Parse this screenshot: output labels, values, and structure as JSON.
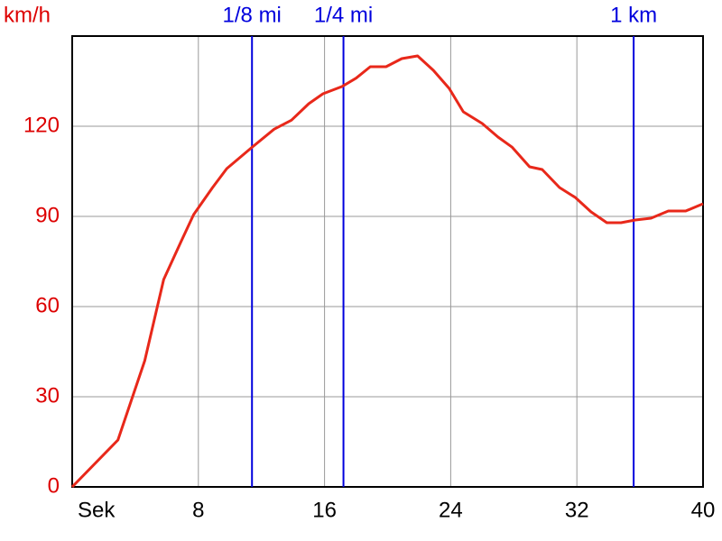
{
  "chart_data": {
    "type": "line",
    "y_label": "km/h",
    "x": [
      0,
      2.9,
      4.6,
      5.8,
      6.9,
      7.7,
      8.9,
      9.8,
      11.4,
      12.8,
      13.9,
      15,
      15.9,
      17.1,
      18,
      18.9,
      19.9,
      20.9,
      21.9,
      22.9,
      23.9,
      24.8,
      26,
      27,
      27.9,
      29,
      29.8,
      30.9,
      31.9,
      32.9,
      33.9,
      34.8,
      35.7,
      36.7,
      37.8,
      38.9,
      40
    ],
    "series": [
      {
        "color": "#e8281a",
        "values": [
          0,
          15.6,
          42,
          69,
          81.6,
          90.6,
          99.6,
          105.9,
          113,
          119,
          122,
          127.5,
          130.8,
          133.2,
          136,
          139.8,
          139.8,
          142.5,
          143.4,
          138.6,
          132.6,
          124.8,
          120.9,
          116.4,
          113,
          106.5,
          105.6,
          99.6,
          96.3,
          91.5,
          87.9,
          87.9,
          88.8,
          89.4,
          91.8,
          91.8,
          94.2
        ]
      }
    ],
    "markers": [
      {
        "label": "1/8 mi",
        "x": 11.4
      },
      {
        "label": "1/4 mi",
        "x": 17.2
      },
      {
        "label": "1 km",
        "x": 35.6
      }
    ],
    "marker_color": "#0000dd",
    "xlim": [
      0,
      40
    ],
    "ylim": [
      0,
      150
    ],
    "xticks": [
      {
        "value": 0,
        "label": "Sek"
      },
      8,
      16,
      24,
      32,
      40
    ],
    "yticks": [
      0,
      30,
      60,
      90,
      120
    ],
    "grid": true,
    "y_tick_color": "#dd0000",
    "x_tick_color": "#000000"
  }
}
